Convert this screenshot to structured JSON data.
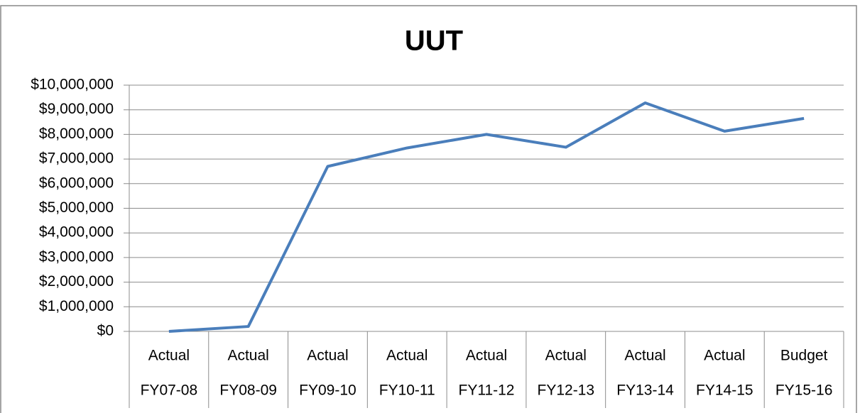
{
  "chart_data": {
    "type": "line",
    "title": "UUT",
    "categories": [
      [
        "Actual",
        "FY07-08"
      ],
      [
        "Actual",
        "FY08-09"
      ],
      [
        "Actual",
        "FY09-10"
      ],
      [
        "Actual",
        "FY10-11"
      ],
      [
        "Actual",
        "FY11-12"
      ],
      [
        "Actual",
        "FY12-13"
      ],
      [
        "Actual",
        "FY13-14"
      ],
      [
        "Actual",
        "FY14-15"
      ],
      [
        "Budget",
        "FY15-16"
      ]
    ],
    "values": [
      0,
      200000,
      6700000,
      7450000,
      8000000,
      7480000,
      9280000,
      8130000,
      8650000
    ],
    "color": "#4a7ebb",
    "ylim": [
      0,
      10000000
    ],
    "yticks": [
      {
        "value": 0,
        "label": "$0"
      },
      {
        "value": 1000000,
        "label": "$1,000,000"
      },
      {
        "value": 2000000,
        "label": "$2,000,000"
      },
      {
        "value": 3000000,
        "label": "$3,000,000"
      },
      {
        "value": 4000000,
        "label": "$4,000,000"
      },
      {
        "value": 5000000,
        "label": "$5,000,000"
      },
      {
        "value": 6000000,
        "label": "$6,000,000"
      },
      {
        "value": 7000000,
        "label": "$7,000,000"
      },
      {
        "value": 8000000,
        "label": "$8,000,000"
      },
      {
        "value": 9000000,
        "label": "$9,000,000"
      },
      {
        "value": 10000000,
        "label": "$10,000,000"
      }
    ],
    "grid": true
  }
}
